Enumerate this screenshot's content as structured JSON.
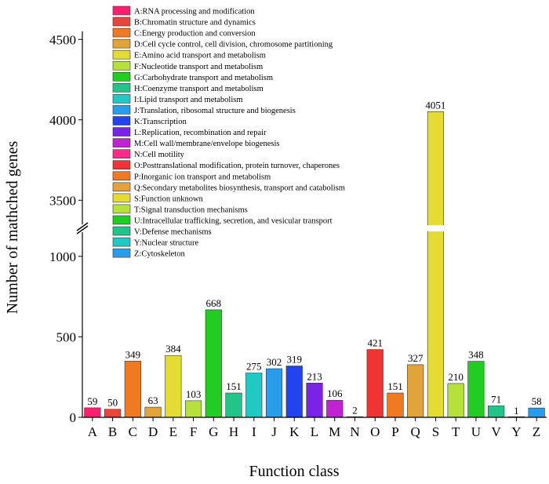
{
  "chart_data": {
    "type": "bar",
    "title": "",
    "xlabel": "Function class",
    "ylabel": "Number of mathched genes",
    "axis_break": {
      "lower_range": [
        0,
        1150
      ],
      "upper_range": [
        3350,
        4550
      ]
    },
    "y_ticks_lower": [
      "0",
      "500",
      "1000"
    ],
    "y_ticks_upper": [
      "3500",
      "4000",
      "4500"
    ],
    "categories": [
      "A",
      "B",
      "C",
      "D",
      "E",
      "F",
      "G",
      "H",
      "I",
      "J",
      "K",
      "L",
      "M",
      "N",
      "O",
      "P",
      "Q",
      "S",
      "T",
      "U",
      "V",
      "Y",
      "Z"
    ],
    "values": [
      59,
      50,
      349,
      63,
      384,
      103,
      668,
      151,
      275,
      302,
      319,
      213,
      106,
      2,
      421,
      151,
      327,
      4051,
      210,
      348,
      71,
      1,
      58
    ],
    "colors": [
      "#ff1f6e",
      "#e8463c",
      "#f07a22",
      "#e0a43a",
      "#e4dc34",
      "#b6e03c",
      "#22cc22",
      "#22c48a",
      "#22c8c4",
      "#2a9cec",
      "#2244ee",
      "#7a22e6",
      "#c022d4",
      "#ff2a8a",
      "#f03434",
      "#f07a22",
      "#e0a43a",
      "#e4dc34",
      "#b6e03c",
      "#22cc22",
      "#22c48a",
      "#22c8c4",
      "#2a9cec"
    ],
    "legend": [
      {
        "label": "A:RNA processing and modification",
        "color": "#ff1f6e"
      },
      {
        "label": "B:Chromatin structure and dynamics",
        "color": "#e8463c"
      },
      {
        "label": "C:Energy production and conversion",
        "color": "#f07a22"
      },
      {
        "label": "D:Cell cycle control, cell division, chromosome partitioning",
        "color": "#e0a43a"
      },
      {
        "label": "E:Amino acid transport and metabolism",
        "color": "#e4dc34"
      },
      {
        "label": "F:Nucleotide transport and metabolism",
        "color": "#b6e03c"
      },
      {
        "label": "G:Carbohydrate transport and metabolism",
        "color": "#22cc22"
      },
      {
        "label": "H:Coenzyme transport and metabolism",
        "color": "#22c48a"
      },
      {
        "label": "I:Lipid transport and metabolism",
        "color": "#22c8c4"
      },
      {
        "label": "J:Translation, ribosomal structure and biogenesis",
        "color": "#2a9cec"
      },
      {
        "label": "K:Transcription",
        "color": "#2244ee"
      },
      {
        "label": "L:Replication, recombination and repair",
        "color": "#7a22e6"
      },
      {
        "label": "M:Cell wall/membrane/envelope biogenesis",
        "color": "#c022d4"
      },
      {
        "label": "N:Cell motility",
        "color": "#ff2a8a"
      },
      {
        "label": "O:Posttranslational modification, protein turnover, chaperones",
        "color": "#f03434"
      },
      {
        "label": "P:Inorganic ion transport and metabolism",
        "color": "#f07a22"
      },
      {
        "label": "Q:Secondary metabolites biosynthesis, transport and catabolism",
        "color": "#e0a43a"
      },
      {
        "label": "S:Function unknown",
        "color": "#e4dc34"
      },
      {
        "label": "T:Signal transduction mechanisms",
        "color": "#b6e03c"
      },
      {
        "label": "U:Intracellular trafficking, secretion, and vesicular transport",
        "color": "#22cc22"
      },
      {
        "label": "V:Defense mechanisms",
        "color": "#22c48a"
      },
      {
        "label": "Y:Nuclear structure",
        "color": "#22c8c4"
      },
      {
        "label": "Z:Cytoskeleton",
        "color": "#2a9cec"
      }
    ],
    "legend_position": "top-left",
    "grid": false
  }
}
